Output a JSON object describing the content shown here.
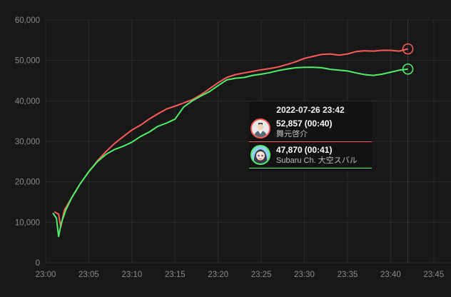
{
  "chart_data": {
    "type": "line",
    "xlabel": "",
    "ylabel": "",
    "ylim": [
      0,
      60000
    ],
    "xlim": [
      "23:00",
      "23:47"
    ],
    "y_ticks": [
      "0",
      "10,000",
      "20,000",
      "30,000",
      "40,000",
      "50,000",
      "60,000"
    ],
    "x_ticks": [
      "23:00",
      "23:05",
      "23:10",
      "23:15",
      "23:20",
      "23:25",
      "23:30",
      "23:35",
      "23:40",
      "23:45"
    ],
    "grid": true,
    "colors": {
      "series1": "#ff5a5a",
      "series2": "#4ef06a"
    },
    "series": [
      {
        "name": "舞元啓介",
        "color": "#ff5a5a",
        "points": [
          [
            "23:01:00",
            12600
          ],
          [
            "23:01:30",
            12000
          ],
          [
            "23:01:45",
            8800
          ],
          [
            "23:02:10",
            13000
          ],
          [
            "23:03:00",
            16000
          ],
          [
            "23:04:00",
            19500
          ],
          [
            "23:05:00",
            22500
          ],
          [
            "23:06:00",
            25200
          ],
          [
            "23:07:00",
            27500
          ],
          [
            "23:08:00",
            29500
          ],
          [
            "23:09:00",
            31200
          ],
          [
            "23:10:00",
            32800
          ],
          [
            "23:11:00",
            34000
          ],
          [
            "23:12:00",
            35500
          ],
          [
            "23:13:00",
            36800
          ],
          [
            "23:14:00",
            38000
          ],
          [
            "23:15:00",
            38700
          ],
          [
            "23:16:00",
            39500
          ],
          [
            "23:17:00",
            40300
          ],
          [
            "23:18:00",
            41500
          ],
          [
            "23:19:00",
            43000
          ],
          [
            "23:20:00",
            44500
          ],
          [
            "23:21:00",
            45800
          ],
          [
            "23:22:00",
            46500
          ],
          [
            "23:23:00",
            46900
          ],
          [
            "23:24:00",
            47300
          ],
          [
            "23:25:00",
            47700
          ],
          [
            "23:26:00",
            48000
          ],
          [
            "23:27:00",
            48400
          ],
          [
            "23:28:00",
            49000
          ],
          [
            "23:29:00",
            49700
          ],
          [
            "23:30:00",
            50500
          ],
          [
            "23:31:00",
            51000
          ],
          [
            "23:32:00",
            51500
          ],
          [
            "23:33:00",
            51600
          ],
          [
            "23:34:00",
            51300
          ],
          [
            "23:35:00",
            51600
          ],
          [
            "23:36:00",
            52200
          ],
          [
            "23:37:00",
            52400
          ],
          [
            "23:38:00",
            52300
          ],
          [
            "23:39:00",
            52500
          ],
          [
            "23:40:00",
            52500
          ],
          [
            "23:41:00",
            52300
          ],
          [
            "23:42:00",
            52857
          ]
        ]
      },
      {
        "name": "Subaru Ch. 大空スバル",
        "color": "#4ef06a",
        "points": [
          [
            "23:00:50",
            12300
          ],
          [
            "23:01:15",
            11000
          ],
          [
            "23:01:30",
            6500
          ],
          [
            "23:01:50",
            10000
          ],
          [
            "23:02:20",
            13000
          ],
          [
            "23:03:00",
            16000
          ],
          [
            "23:04:00",
            19500
          ],
          [
            "23:05:00",
            22500
          ],
          [
            "23:06:00",
            25000
          ],
          [
            "23:07:00",
            26800
          ],
          [
            "23:08:00",
            28000
          ],
          [
            "23:09:00",
            28800
          ],
          [
            "23:10:00",
            29800
          ],
          [
            "23:11:00",
            31200
          ],
          [
            "23:12:00",
            32300
          ],
          [
            "23:13:00",
            33700
          ],
          [
            "23:14:00",
            34500
          ],
          [
            "23:15:00",
            35500
          ],
          [
            "23:16:00",
            38500
          ],
          [
            "23:17:00",
            40000
          ],
          [
            "23:18:00",
            41200
          ],
          [
            "23:19:00",
            42300
          ],
          [
            "23:20:00",
            43800
          ],
          [
            "23:21:00",
            45200
          ],
          [
            "23:22:00",
            45600
          ],
          [
            "23:23:00",
            45800
          ],
          [
            "23:24:00",
            46300
          ],
          [
            "23:25:00",
            46600
          ],
          [
            "23:26:00",
            47000
          ],
          [
            "23:27:00",
            47500
          ],
          [
            "23:28:00",
            47900
          ],
          [
            "23:29:00",
            48200
          ],
          [
            "23:30:00",
            48300
          ],
          [
            "23:31:00",
            48300
          ],
          [
            "23:32:00",
            48200
          ],
          [
            "23:33:00",
            47800
          ],
          [
            "23:34:00",
            47600
          ],
          [
            "23:35:00",
            47400
          ],
          [
            "23:36:00",
            46900
          ],
          [
            "23:37:00",
            46500
          ],
          [
            "23:38:00",
            46300
          ],
          [
            "23:39:00",
            46600
          ],
          [
            "23:40:00",
            47100
          ],
          [
            "23:41:00",
            47600
          ],
          [
            "23:42:00",
            47870
          ]
        ]
      }
    ],
    "crosshair_time": "23:42:00"
  },
  "tooltip": {
    "time": "2022-07-26 23:42",
    "entries": [
      {
        "value": "52,857",
        "duration": "(00:40)",
        "name": "舞元啓介",
        "color": "#ff5a5a",
        "avatar": "man-avatar-icon"
      },
      {
        "value": "47,870",
        "duration": "(00:41)",
        "name": "Subaru Ch. 大空スバル",
        "color": "#4ef06a",
        "avatar": "anime-girl-avatar-icon"
      }
    ]
  }
}
